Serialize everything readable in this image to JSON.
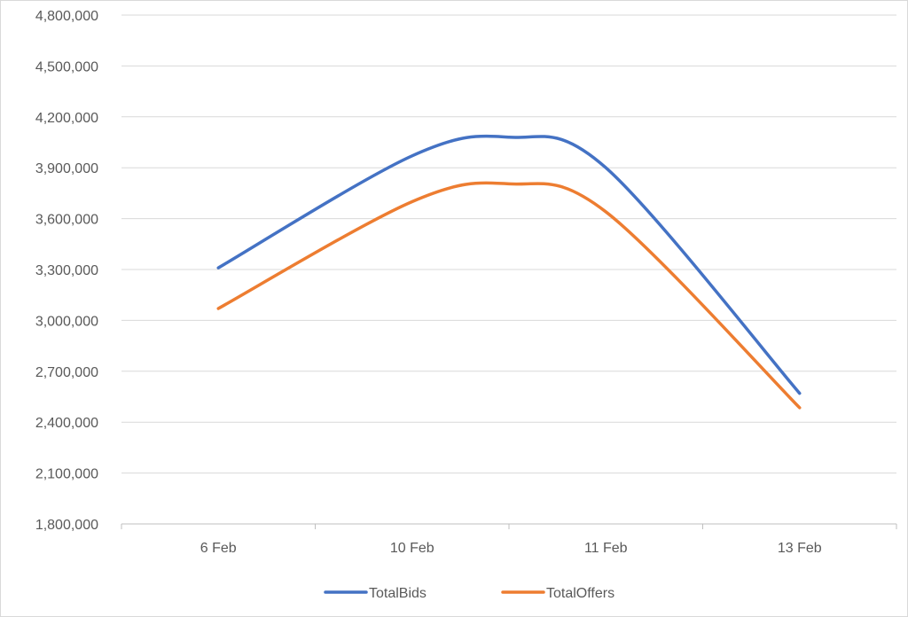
{
  "chart_data": {
    "type": "line",
    "smooth": true,
    "categories": [
      "6 Feb",
      "10 Feb",
      "11 Feb",
      "13 Feb"
    ],
    "series": [
      {
        "name": "TotalBids",
        "color": "#4472c4",
        "x": [
          0,
          1,
          1.5,
          2,
          3
        ],
        "values": [
          3310000,
          3970000,
          4080000,
          3900000,
          2570000
        ]
      },
      {
        "name": "TotalOffers",
        "color": "#ed7d31",
        "x": [
          0,
          1,
          1.5,
          2,
          3
        ],
        "values": [
          3070000,
          3700000,
          3805000,
          3640000,
          2485000
        ]
      }
    ],
    "ylim": [
      1800000,
      4800000
    ],
    "yticks": [
      "1,800,000",
      "2,100,000",
      "2,400,000",
      "2,700,000",
      "3,000,000",
      "3,300,000",
      "3,600,000",
      "3,900,000",
      "4,200,000",
      "4,500,000",
      "4,800,000"
    ],
    "grid": true,
    "legend_position": "bottom",
    "xlabel": "",
    "ylabel": "",
    "title": ""
  }
}
